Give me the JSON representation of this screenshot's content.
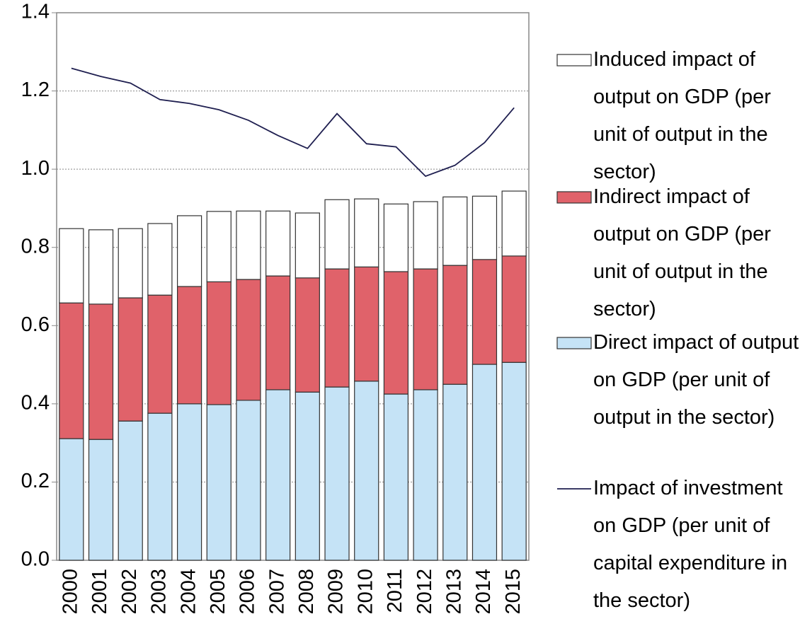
{
  "chart_data": {
    "type": "bar",
    "categories": [
      "2000",
      "2001",
      "2002",
      "2003",
      "2004",
      "2005",
      "2006",
      "2007",
      "2008",
      "2009",
      "2010",
      "2011",
      "2012",
      "2013",
      "2014",
      "2015"
    ],
    "series": [
      {
        "name": "Direct impact of output on GDP (per unit of output in the sector)",
        "color": "#c5e3f6",
        "stack": true,
        "values": [
          0.311,
          0.309,
          0.356,
          0.376,
          0.4,
          0.398,
          0.409,
          0.436,
          0.43,
          0.443,
          0.458,
          0.425,
          0.436,
          0.45,
          0.501,
          0.506
        ]
      },
      {
        "name": "Indirect impact of output on GDP (per unit of output in the sector)",
        "color": "#e0626a",
        "stack": true,
        "values": [
          0.347,
          0.346,
          0.315,
          0.302,
          0.3,
          0.314,
          0.309,
          0.291,
          0.292,
          0.302,
          0.292,
          0.313,
          0.309,
          0.304,
          0.268,
          0.272
        ]
      },
      {
        "name": "Induced impact of output on GDP (per unit of output in the sector)",
        "color": "#ffffff",
        "stack": true,
        "values": [
          0.19,
          0.19,
          0.177,
          0.183,
          0.181,
          0.18,
          0.175,
          0.166,
          0.166,
          0.177,
          0.174,
          0.173,
          0.172,
          0.175,
          0.162,
          0.166
        ]
      },
      {
        "name": "Impact of investment on GDP (per unit of capital expenditure in the sector)",
        "color": "#1f1f50",
        "type": "line",
        "values": [
          1.258,
          1.237,
          1.22,
          1.178,
          1.168,
          1.152,
          1.125,
          1.086,
          1.053,
          1.142,
          1.065,
          1.057,
          0.982,
          1.01,
          1.068,
          1.157
        ]
      }
    ],
    "ylim": [
      0,
      1.4
    ],
    "yticks": [
      {
        "value": 0,
        "label": "0.0"
      },
      0.2,
      0.4,
      0.6,
      0.8,
      {
        "value": 1,
        "label": "1.0"
      },
      1.2,
      1.4
    ],
    "grid": true,
    "legend": "right"
  }
}
